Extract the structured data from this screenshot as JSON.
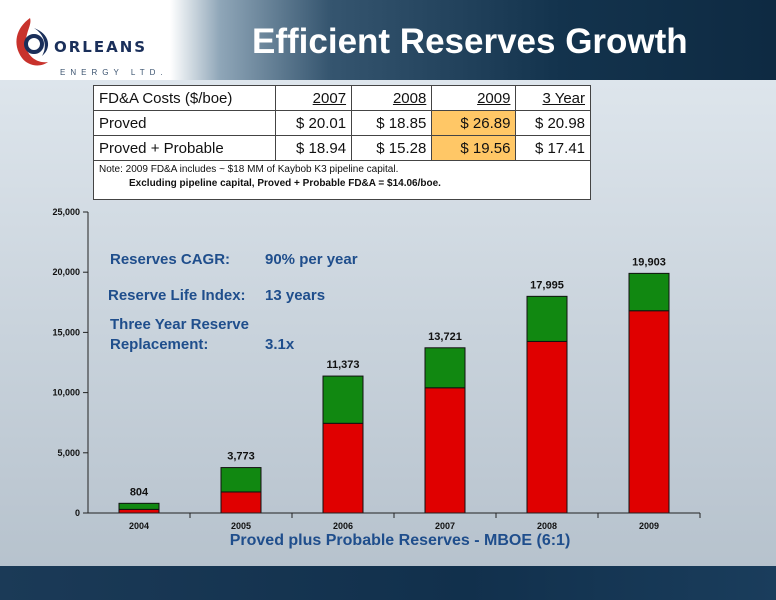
{
  "header": {
    "logo_word": "ORLEANS",
    "logo_sub": "ENERGY LTD.",
    "title": "Efficient Reserves Growth"
  },
  "cost_table": {
    "header": [
      "FD&A  Costs ($/boe)",
      "2007",
      "2008",
      "2009",
      "3 Year"
    ],
    "rows": [
      {
        "label": "Proved",
        "values": [
          "$  20.01",
          "$ 18.85",
          "$ 26.89",
          "$ 20.98"
        ]
      },
      {
        "label": "Proved + Probable",
        "values": [
          "$  18.94",
          "$ 15.28",
          "$ 19.56",
          "$ 17.41"
        ]
      }
    ],
    "note_line1": "Note:  2009 FD&A includes ~ $18 MM of Kaybob K3 pipeline capital.",
    "note_line2": "Excluding pipeline capital, Proved + Probable FD&A = $14.06/boe.",
    "highlight_color": "#ffc766"
  },
  "annotations": {
    "cagr_label": "Reserves CAGR:",
    "cagr_value": "90% per year",
    "rli_label": "Reserve Life Index:",
    "rli_value": "13 years",
    "replacement_label_1": "Three Year Reserve",
    "replacement_label_2": "Replacement:",
    "replacement_value": "3.1x"
  },
  "chart_data": {
    "type": "bar",
    "stacked": true,
    "categories": [
      "2004",
      "2005",
      "2006",
      "2007",
      "2008",
      "2009"
    ],
    "series": [
      {
        "color": "#e00000",
        "values": [
          300,
          1750,
          7450,
          10400,
          14250,
          16800
        ]
      },
      {
        "color": "#118811",
        "values": [
          504,
          2023,
          3923,
          3321,
          3745,
          3103
        ]
      }
    ],
    "totals": [
      804,
      3773,
      11373,
      13721,
      17995,
      19903
    ],
    "total_labels": [
      "804",
      "3,773",
      "11,373",
      "13,721",
      "17,995",
      "19,903"
    ],
    "y_ticks": [
      "0",
      "5,000",
      "10,000",
      "15,000",
      "20,000",
      "25,000"
    ],
    "ylim": [
      0,
      25000
    ],
    "xlabel": "Proved plus Probable Reserves - MBOE (6:1)",
    "grid": false
  }
}
